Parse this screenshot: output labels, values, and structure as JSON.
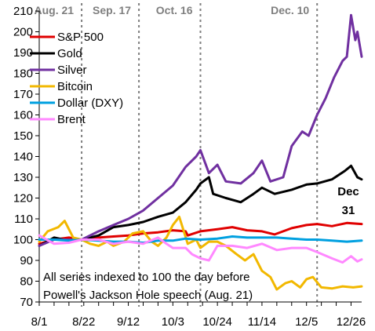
{
  "chart_data": {
    "type": "line",
    "title": "",
    "xlabel": "",
    "ylabel": "",
    "ylim": [
      70,
      210
    ],
    "yticks": [
      70,
      80,
      90,
      100,
      110,
      120,
      130,
      140,
      150,
      160,
      170,
      180,
      190,
      200,
      210
    ],
    "xlim": [
      "2025-08-01",
      "2025-12-31"
    ],
    "xticks": [
      {
        "date": "2025-08-01",
        "label": "8/1"
      },
      {
        "date": "2025-08-22",
        "label": "8/22"
      },
      {
        "date": "2025-09-12",
        "label": "9/12"
      },
      {
        "date": "2025-10-03",
        "label": "10/3"
      },
      {
        "date": "2025-10-24",
        "label": "10/24"
      },
      {
        "date": "2025-11-14",
        "label": "11/14"
      },
      {
        "date": "2025-12-05",
        "label": "12/5"
      },
      {
        "date": "2025-12-26",
        "label": "12/26"
      }
    ],
    "grid": false,
    "legend_position": "top-left",
    "vertical_markers": [
      {
        "date": "2025-08-21",
        "label": "Aug. 21"
      },
      {
        "date": "2025-09-17",
        "label": "Sep. 17"
      },
      {
        "date": "2025-10-16",
        "label": "Oct. 16"
      },
      {
        "date": "2025-12-10",
        "label": "Dec. 10"
      }
    ],
    "annotations": [
      {
        "text": "All series indexed to 100 the day before"
      },
      {
        "text": "Powell's Jackson Hole speech (Aug. 21)"
      }
    ],
    "end_label": {
      "line1": "Dec",
      "line2": "31"
    },
    "series": [
      {
        "name": "S&P 500",
        "color": "#e00000",
        "points": [
          [
            "2025-08-01",
            98
          ],
          [
            "2025-08-08",
            100
          ],
          [
            "2025-08-15",
            101
          ],
          [
            "2025-08-21",
            100
          ],
          [
            "2025-08-29",
            101
          ],
          [
            "2025-09-05",
            101.5
          ],
          [
            "2025-09-12",
            102
          ],
          [
            "2025-09-19",
            103
          ],
          [
            "2025-09-26",
            103.5
          ],
          [
            "2025-10-03",
            104.5
          ],
          [
            "2025-10-09",
            104
          ],
          [
            "2025-10-10",
            102
          ],
          [
            "2025-10-16",
            104
          ],
          [
            "2025-10-24",
            105
          ],
          [
            "2025-10-31",
            106
          ],
          [
            "2025-11-07",
            104.5
          ],
          [
            "2025-11-14",
            104
          ],
          [
            "2025-11-20",
            102.5
          ],
          [
            "2025-11-28",
            105.5
          ],
          [
            "2025-12-05",
            107
          ],
          [
            "2025-12-10",
            107.5
          ],
          [
            "2025-12-17",
            106.5
          ],
          [
            "2025-12-24",
            108
          ],
          [
            "2025-12-31",
            107.5
          ]
        ]
      },
      {
        "name": "Gold",
        "color": "#000000",
        "points": [
          [
            "2025-08-01",
            97
          ],
          [
            "2025-08-08",
            101
          ],
          [
            "2025-08-15",
            99.5
          ],
          [
            "2025-08-21",
            100
          ],
          [
            "2025-08-29",
            102
          ],
          [
            "2025-09-05",
            106
          ],
          [
            "2025-09-12",
            107
          ],
          [
            "2025-09-19",
            108.5
          ],
          [
            "2025-09-26",
            111
          ],
          [
            "2025-10-03",
            113
          ],
          [
            "2025-10-09",
            118
          ],
          [
            "2025-10-14",
            124
          ],
          [
            "2025-10-16",
            127
          ],
          [
            "2025-10-20",
            130
          ],
          [
            "2025-10-22",
            122
          ],
          [
            "2025-10-28",
            120
          ],
          [
            "2025-11-04",
            118
          ],
          [
            "2025-11-10",
            122
          ],
          [
            "2025-11-14",
            125
          ],
          [
            "2025-11-20",
            122
          ],
          [
            "2025-11-28",
            124
          ],
          [
            "2025-12-05",
            126.5
          ],
          [
            "2025-12-10",
            127
          ],
          [
            "2025-12-17",
            129
          ],
          [
            "2025-12-23",
            133
          ],
          [
            "2025-12-26",
            135.5
          ],
          [
            "2025-12-29",
            130
          ],
          [
            "2025-12-31",
            129
          ]
        ]
      },
      {
        "name": "Silver",
        "color": "#7030a0",
        "points": [
          [
            "2025-08-01",
            97
          ],
          [
            "2025-08-08",
            100
          ],
          [
            "2025-08-15",
            100
          ],
          [
            "2025-08-21",
            100
          ],
          [
            "2025-08-29",
            104
          ],
          [
            "2025-09-05",
            107
          ],
          [
            "2025-09-12",
            110
          ],
          [
            "2025-09-19",
            114
          ],
          [
            "2025-09-26",
            120
          ],
          [
            "2025-10-03",
            126
          ],
          [
            "2025-10-09",
            135
          ],
          [
            "2025-10-14",
            140
          ],
          [
            "2025-10-16",
            143
          ],
          [
            "2025-10-20",
            132
          ],
          [
            "2025-10-24",
            136
          ],
          [
            "2025-10-28",
            128
          ],
          [
            "2025-11-04",
            127
          ],
          [
            "2025-11-10",
            132
          ],
          [
            "2025-11-14",
            138
          ],
          [
            "2025-11-18",
            128
          ],
          [
            "2025-11-24",
            130
          ],
          [
            "2025-11-28",
            145
          ],
          [
            "2025-12-03",
            152
          ],
          [
            "2025-12-06",
            150
          ],
          [
            "2025-12-10",
            160
          ],
          [
            "2025-12-14",
            168
          ],
          [
            "2025-12-18",
            178
          ],
          [
            "2025-12-22",
            186
          ],
          [
            "2025-12-24",
            188
          ],
          [
            "2025-12-26",
            208
          ],
          [
            "2025-12-28",
            196
          ],
          [
            "2025-12-29",
            200
          ],
          [
            "2025-12-31",
            188
          ]
        ]
      },
      {
        "name": "Bitcoin",
        "color": "#f2b800",
        "points": [
          [
            "2025-08-01",
            99
          ],
          [
            "2025-08-05",
            104
          ],
          [
            "2025-08-10",
            106
          ],
          [
            "2025-08-13",
            109
          ],
          [
            "2025-08-17",
            101
          ],
          [
            "2025-08-21",
            100
          ],
          [
            "2025-08-25",
            98
          ],
          [
            "2025-08-29",
            97
          ],
          [
            "2025-09-02",
            99
          ],
          [
            "2025-09-05",
            97
          ],
          [
            "2025-09-10",
            99
          ],
          [
            "2025-09-14",
            103
          ],
          [
            "2025-09-19",
            104
          ],
          [
            "2025-09-23",
            99
          ],
          [
            "2025-09-26",
            97
          ],
          [
            "2025-09-30",
            101
          ],
          [
            "2025-10-03",
            107
          ],
          [
            "2025-10-06",
            111
          ],
          [
            "2025-10-10",
            98
          ],
          [
            "2025-10-14",
            100
          ],
          [
            "2025-10-16",
            96
          ],
          [
            "2025-10-20",
            99
          ],
          [
            "2025-10-24",
            99
          ],
          [
            "2025-10-28",
            97
          ],
          [
            "2025-11-02",
            93
          ],
          [
            "2025-11-06",
            90
          ],
          [
            "2025-11-10",
            93
          ],
          [
            "2025-11-14",
            85
          ],
          [
            "2025-11-18",
            82
          ],
          [
            "2025-11-21",
            76
          ],
          [
            "2025-11-25",
            79
          ],
          [
            "2025-11-28",
            80
          ],
          [
            "2025-12-02",
            77
          ],
          [
            "2025-12-05",
            81
          ],
          [
            "2025-12-08",
            82
          ],
          [
            "2025-12-12",
            77
          ],
          [
            "2025-12-17",
            76.5
          ],
          [
            "2025-12-22",
            77.5
          ],
          [
            "2025-12-27",
            77
          ],
          [
            "2025-12-31",
            77.5
          ]
        ]
      },
      {
        "name": "Dollar (DXY)",
        "color": "#00a0e0",
        "points": [
          [
            "2025-08-01",
            100
          ],
          [
            "2025-08-08",
            100
          ],
          [
            "2025-08-15",
            99.5
          ],
          [
            "2025-08-21",
            100
          ],
          [
            "2025-08-29",
            99.5
          ],
          [
            "2025-09-05",
            99
          ],
          [
            "2025-09-12",
            99
          ],
          [
            "2025-09-19",
            98.5
          ],
          [
            "2025-09-26",
            99.5
          ],
          [
            "2025-10-03",
            99.5
          ],
          [
            "2025-10-09",
            100.5
          ],
          [
            "2025-10-16",
            100
          ],
          [
            "2025-10-24",
            100.5
          ],
          [
            "2025-10-31",
            101.5
          ],
          [
            "2025-11-07",
            101
          ],
          [
            "2025-11-14",
            101
          ],
          [
            "2025-11-21",
            101
          ],
          [
            "2025-11-28",
            100.5
          ],
          [
            "2025-12-05",
            100
          ],
          [
            "2025-12-10",
            100
          ],
          [
            "2025-12-17",
            99.5
          ],
          [
            "2025-12-24",
            99
          ],
          [
            "2025-12-31",
            99.5
          ]
        ]
      },
      {
        "name": "Brent",
        "color": "#ff88ff",
        "points": [
          [
            "2025-08-01",
            102
          ],
          [
            "2025-08-08",
            98
          ],
          [
            "2025-08-15",
            98.5
          ],
          [
            "2025-08-21",
            100
          ],
          [
            "2025-08-29",
            100
          ],
          [
            "2025-09-05",
            98
          ],
          [
            "2025-09-12",
            99
          ],
          [
            "2025-09-19",
            98
          ],
          [
            "2025-09-26",
            101
          ],
          [
            "2025-09-30",
            98
          ],
          [
            "2025-10-03",
            96
          ],
          [
            "2025-10-09",
            96
          ],
          [
            "2025-10-12",
            93
          ],
          [
            "2025-10-16",
            91
          ],
          [
            "2025-10-20",
            90
          ],
          [
            "2025-10-24",
            97
          ],
          [
            "2025-10-31",
            97
          ],
          [
            "2025-11-07",
            96
          ],
          [
            "2025-11-14",
            98
          ],
          [
            "2025-11-21",
            95
          ],
          [
            "2025-11-28",
            96
          ],
          [
            "2025-12-05",
            96
          ],
          [
            "2025-12-10",
            94
          ],
          [
            "2025-12-17",
            91
          ],
          [
            "2025-12-22",
            89
          ],
          [
            "2025-12-26",
            92
          ],
          [
            "2025-12-29",
            89.5
          ],
          [
            "2025-12-31",
            90.5
          ]
        ]
      }
    ]
  }
}
